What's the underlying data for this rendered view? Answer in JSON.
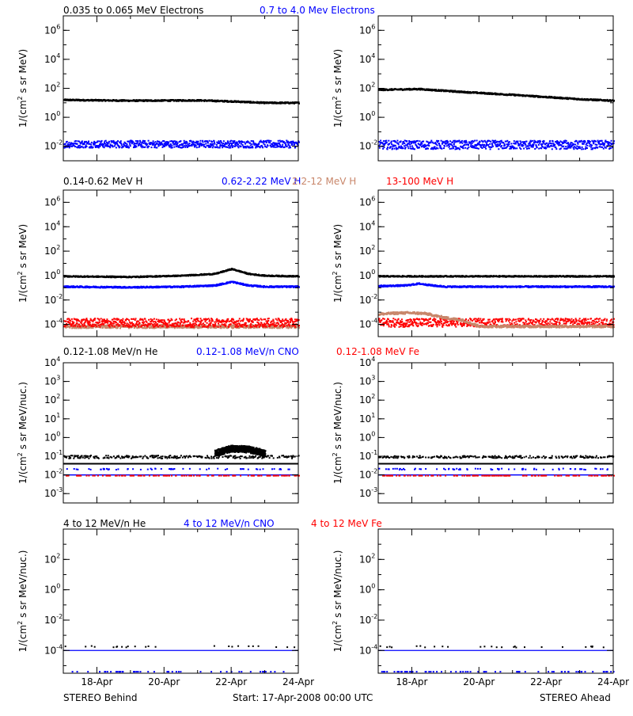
{
  "colors": {
    "black": "#000000",
    "blue": "#0000ff",
    "tan": "#c8866a",
    "red": "#ff0000"
  },
  "footer": {
    "left": "STEREO Behind",
    "center": "Start: 17-Apr-2008 00:00 UTC",
    "right": "STEREO Ahead"
  },
  "x_tick_labels": [
    "18-Apr",
    "20-Apr",
    "22-Apr",
    "24-Apr"
  ],
  "chart_data": [
    {
      "type": "scatter",
      "row": 0,
      "legend": [
        {
          "name": "0.035 to 0.065 MeV Electrons",
          "color": "#000000"
        },
        {
          "name": "0.7 to 4.0 Mev Electrons",
          "color": "#0000ff"
        }
      ],
      "ylabel": {
        "prefix": "1/(cm",
        "sup": "2",
        "suffix": " s sr MeV)"
      },
      "yscale": "log",
      "ylim_exp": [
        -3,
        7
      ],
      "yticks": [
        {
          "exp": 6,
          "label": "10",
          "sup": "6"
        },
        {
          "exp": 4,
          "label": "10",
          "sup": "4"
        },
        {
          "exp": 2,
          "label": "10",
          "sup": "2"
        },
        {
          "exp": 0,
          "label": "10",
          "sup": "0"
        },
        {
          "exp": -2,
          "label": "10",
          "sup": "-2"
        }
      ],
      "xlim_days": [
        17.0,
        24.0
      ],
      "panels": [
        {
          "name": "STEREO Behind",
          "series": [
            {
              "name": "0.035 to 0.065 MeV Electrons",
              "color": "#000000",
              "x": [
                17,
                19,
                21,
                22,
                23,
                24
              ],
              "log10_y": [
                1.25,
                1.2,
                1.22,
                1.15,
                1.05,
                1.05
              ],
              "scatter": 0.05,
              "size": 2
            },
            {
              "name": "0.7 to 4.0 Mev Electrons",
              "color": "#0000ff",
              "x": [
                17,
                24
              ],
              "log10_y": [
                -1.8,
                -1.8
              ],
              "scatter": 0.25,
              "size": 2
            }
          ]
        },
        {
          "name": "STEREO Ahead",
          "series": [
            {
              "name": "0.035 to 0.065 MeV Electrons",
              "color": "#000000",
              "x": [
                17,
                18.2,
                19.5,
                21,
                22,
                23,
                24
              ],
              "log10_y": [
                1.95,
                2.0,
                1.8,
                1.6,
                1.45,
                1.3,
                1.2
              ],
              "scatter": 0.05,
              "size": 2
            },
            {
              "name": "0.7 to 4.0 Mev Electrons",
              "color": "#0000ff",
              "x": [
                17,
                24
              ],
              "log10_y": [
                -1.85,
                -1.85
              ],
              "scatter": 0.3,
              "size": 2
            }
          ]
        }
      ]
    },
    {
      "type": "scatter",
      "row": 1,
      "legend": [
        {
          "name": "0.14-0.62 MeV H",
          "color": "#000000"
        },
        {
          "name": "0.62-2.22 MeV H",
          "color": "#0000ff"
        },
        {
          "name": "2.2-12 MeV H",
          "color": "#c8866a"
        },
        {
          "name": "13-100 MeV H",
          "color": "#ff0000"
        }
      ],
      "ylabel": {
        "prefix": "1/(cm",
        "sup": "2",
        "suffix": " s sr MeV)"
      },
      "yscale": "log",
      "ylim_exp": [
        -5,
        7
      ],
      "yticks": [
        {
          "exp": 6,
          "label": "10",
          "sup": "6"
        },
        {
          "exp": 4,
          "label": "10",
          "sup": "4"
        },
        {
          "exp": 2,
          "label": "10",
          "sup": "2"
        },
        {
          "exp": 0,
          "label": "10",
          "sup": "0"
        },
        {
          "exp": -2,
          "label": "10",
          "sup": "-2"
        },
        {
          "exp": -4,
          "label": "10",
          "sup": "-4"
        }
      ],
      "xlim_days": [
        17.0,
        24.0
      ],
      "panels": [
        {
          "name": "STEREO Behind",
          "series": [
            {
              "name": "2.2-12 MeV H",
              "color": "#c8866a",
              "x": [
                17,
                24
              ],
              "log10_y": [
                -4.1,
                -4.1
              ],
              "scatter": 0.15,
              "size": 2
            },
            {
              "name": "13-100 MeV H",
              "color": "#ff0000",
              "x": [
                17,
                24
              ],
              "log10_y": [
                -3.8,
                -3.8
              ],
              "scatter": 0.35,
              "size": 2
            },
            {
              "name": "0.62-2.22 MeV H",
              "color": "#0000ff",
              "x": [
                17,
                19,
                20.5,
                21.5,
                22,
                22.5,
                23,
                24
              ],
              "log10_y": [
                -0.85,
                -0.9,
                -0.85,
                -0.75,
                -0.45,
                -0.75,
                -0.85,
                -0.85
              ],
              "scatter": 0.06,
              "size": 2
            },
            {
              "name": "0.14-0.62 MeV H",
              "color": "#000000",
              "x": [
                17,
                19,
                20.5,
                21.5,
                22,
                22.5,
                23,
                24
              ],
              "log10_y": [
                0.0,
                -0.05,
                0.05,
                0.2,
                0.6,
                0.2,
                0.05,
                0.0
              ],
              "scatter": 0.05,
              "size": 2
            }
          ]
        },
        {
          "name": "STEREO Ahead",
          "series": [
            {
              "name": "13-100 MeV H",
              "color": "#ff0000",
              "x": [
                17,
                24
              ],
              "log10_y": [
                -3.8,
                -3.8
              ],
              "scatter": 0.35,
              "size": 2
            },
            {
              "name": "2.2-12 MeV H",
              "color": "#c8866a",
              "x": [
                17,
                17.6,
                18,
                18.4,
                18.8,
                19,
                19.5,
                20,
                24
              ],
              "log10_y": [
                -3.1,
                -3.0,
                -3.0,
                -3.05,
                -3.3,
                -3.4,
                -3.6,
                -4.1,
                -4.1
              ],
              "scatter": 0.1,
              "size": 2
            },
            {
              "name": "0.62-2.22 MeV H",
              "color": "#0000ff",
              "x": [
                17,
                17.8,
                18.2,
                18.6,
                19,
                24
              ],
              "log10_y": [
                -0.8,
                -0.75,
                -0.6,
                -0.75,
                -0.85,
                -0.85
              ],
              "scatter": 0.06,
              "size": 2
            },
            {
              "name": "0.14-0.62 MeV H",
              "color": "#000000",
              "x": [
                17,
                24
              ],
              "log10_y": [
                0.0,
                0.0
              ],
              "scatter": 0.05,
              "size": 2
            }
          ]
        }
      ]
    },
    {
      "type": "scatter",
      "row": 2,
      "legend": [
        {
          "name": "0.12-1.08 MeV/n He",
          "color": "#000000"
        },
        {
          "name": "0.12-1.08 MeV/n CNO",
          "color": "#0000ff"
        },
        {
          "name": "0.12-1.08 MeV Fe",
          "color": "#ff0000"
        }
      ],
      "ylabel": {
        "prefix": "1/(cm",
        "sup": "2",
        "suffix": " s sr MeV/nuc.)"
      },
      "yscale": "log",
      "ylim_exp": [
        -3.5,
        4
      ],
      "yticks": [
        {
          "exp": 4,
          "label": "10",
          "sup": "4"
        },
        {
          "exp": 3,
          "label": "10",
          "sup": "3"
        },
        {
          "exp": 2,
          "label": "10",
          "sup": "2"
        },
        {
          "exp": 1,
          "label": "10",
          "sup": "1"
        },
        {
          "exp": 0,
          "label": "10",
          "sup": "0"
        },
        {
          "exp": -1,
          "label": "10",
          "sup": "-1"
        },
        {
          "exp": -2,
          "label": "10",
          "sup": "-2"
        },
        {
          "exp": -3,
          "label": "10",
          "sup": "-3"
        }
      ],
      "xlim_days": [
        17.0,
        24.0
      ],
      "panels": [
        {
          "name": "STEREO Behind",
          "lines": [
            {
              "color": "#000000",
              "log10_y": -1.4,
              "width": 2
            },
            {
              "color": "#0000ff",
              "log10_y": -2.0,
              "width": 1.5
            }
          ],
          "series": [
            {
              "name": "0.12-1.08 MeV/n He",
              "color": "#000000",
              "x": [
                17,
                24
              ],
              "log10_y": [
                -1.0,
                -1.0
              ],
              "scatter": 0.08,
              "size": 2,
              "sparse": 0.35
            },
            {
              "name": "0.12-1.08 MeV/n He",
              "color": "#000000",
              "x": [
                21.5,
                22,
                22.5,
                23
              ],
              "log10_y": [
                -0.8,
                -0.55,
                -0.6,
                -0.8
              ],
              "scatter": 0.18,
              "size": 2
            },
            {
              "name": "0.12-1.08 MeV/n CNO",
              "color": "#0000ff",
              "x": [
                17,
                24
              ],
              "log10_y": [
                -1.65,
                -1.65
              ],
              "scatter": 0.03,
              "size": 2,
              "sparse": 0.08
            },
            {
              "name": "0.12-1.08 MeV Fe",
              "color": "#ff0000",
              "x": [
                17,
                24
              ],
              "log10_y": [
                -2.0,
                -2.0
              ],
              "scatter": 0.0,
              "size": 2,
              "sparse": 0.15
            }
          ]
        },
        {
          "name": "STEREO Ahead",
          "lines": [
            {
              "color": "#000000",
              "log10_y": -1.4,
              "width": 2
            },
            {
              "color": "#0000ff",
              "log10_y": -2.0,
              "width": 1.5
            }
          ],
          "series": [
            {
              "name": "0.12-1.08 MeV/n He",
              "color": "#000000",
              "x": [
                17,
                24
              ],
              "log10_y": [
                -1.0,
                -1.0
              ],
              "scatter": 0.06,
              "size": 2,
              "sparse": 0.35
            },
            {
              "name": "0.12-1.08 MeV/n CNO",
              "color": "#0000ff",
              "x": [
                17,
                24
              ],
              "log10_y": [
                -1.65,
                -1.65
              ],
              "scatter": 0.03,
              "size": 2,
              "sparse": 0.08
            },
            {
              "name": "0.12-1.08 MeV Fe",
              "color": "#ff0000",
              "x": [
                17,
                24
              ],
              "log10_y": [
                -2.0,
                -2.0
              ],
              "scatter": 0.0,
              "size": 2,
              "sparse": 0.15
            }
          ]
        }
      ]
    },
    {
      "type": "scatter",
      "row": 3,
      "legend": [
        {
          "name": "4 to 12 MeV/n He",
          "color": "#000000"
        },
        {
          "name": "4 to 12 MeV/n CNO",
          "color": "#0000ff"
        },
        {
          "name": "4 to 12 MeV Fe",
          "color": "#ff0000"
        }
      ],
      "ylabel": {
        "prefix": "1/(cm",
        "sup": "2",
        "suffix": " s sr MeV/nuc.)"
      },
      "yscale": "log",
      "ylim_exp": [
        -5.5,
        4
      ],
      "yticks": [
        {
          "exp": 2,
          "label": "10",
          "sup": "2"
        },
        {
          "exp": 0,
          "label": "10",
          "sup": "0"
        },
        {
          "exp": -2,
          "label": "10",
          "sup": "-2"
        },
        {
          "exp": -4,
          "label": "10",
          "sup": "-4"
        }
      ],
      "xlim_days": [
        17.0,
        24.0
      ],
      "panels": [
        {
          "name": "STEREO Behind",
          "lines": [
            {
              "color": "#0000ff",
              "log10_y": -4.0,
              "width": 1.2
            }
          ],
          "series": [
            {
              "name": "4 to 12 MeV/n He",
              "color": "#000000",
              "x": [
                17,
                24
              ],
              "log10_y": [
                -3.7,
                -3.7
              ],
              "scatter": 0.05,
              "size": 2,
              "sparse": 0.04
            },
            {
              "name": "4 to 12 MeV/n CNO",
              "color": "#0000ff",
              "x": [
                17,
                24
              ],
              "log10_y": [
                -5.35,
                -5.35
              ],
              "scatter": 0.0,
              "size": 2,
              "sparse": 0.08
            }
          ]
        },
        {
          "name": "STEREO Ahead",
          "lines": [
            {
              "color": "#0000ff",
              "log10_y": -4.0,
              "width": 1.2
            }
          ],
          "series": [
            {
              "name": "4 to 12 MeV/n He",
              "color": "#000000",
              "x": [
                17,
                24
              ],
              "log10_y": [
                -3.7,
                -3.7
              ],
              "scatter": 0.05,
              "size": 2,
              "sparse": 0.04
            },
            {
              "name": "4 to 12 MeV/n CNO",
              "color": "#0000ff",
              "x": [
                17,
                24
              ],
              "log10_y": [
                -5.35,
                -5.35
              ],
              "scatter": 0.0,
              "size": 2,
              "sparse": 0.08
            }
          ]
        }
      ]
    }
  ]
}
